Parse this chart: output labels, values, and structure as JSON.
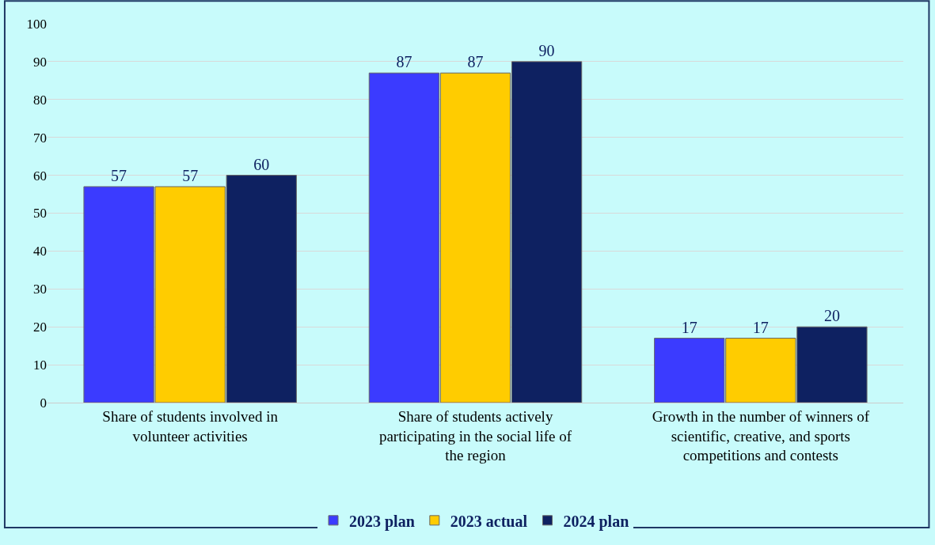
{
  "chart_data": {
    "type": "bar",
    "categories": [
      "Share of students involved in volunteer activities",
      "Share of students actively participating in the social life of the region",
      "Growth in the number of winners of scientific, creative, and sports competitions and contests"
    ],
    "series": [
      {
        "name": "2023 plan",
        "color": "#3b3bff",
        "values": [
          57,
          87,
          17
        ]
      },
      {
        "name": "2023 actual",
        "color": "#ffcc00",
        "values": [
          57,
          87,
          17
        ]
      },
      {
        "name": "2024 plan",
        "color": "#0e2161",
        "values": [
          60,
          90,
          20
        ]
      }
    ],
    "ylim": [
      0,
      100
    ],
    "yticks": [
      0,
      10,
      20,
      30,
      40,
      50,
      60,
      70,
      80,
      90,
      100
    ],
    "grid": "y",
    "legend": "bottom",
    "data_labels": true
  }
}
